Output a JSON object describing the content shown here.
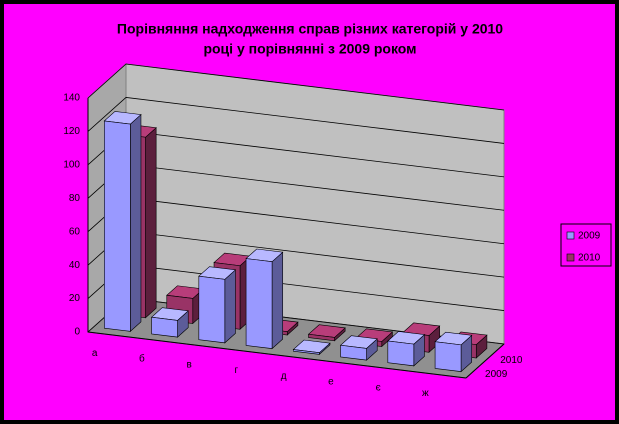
{
  "chart_data": {
    "type": "bar3d",
    "title": [
      "Порівняння надходження справ різних категорій у 2010",
      "році у порівнянні з 2009 роком"
    ],
    "categories": [
      "а",
      "б",
      "в",
      "г",
      "д",
      "е",
      "є",
      "ж"
    ],
    "series": [
      {
        "name": "2009",
        "color": "#9999ff",
        "values": [
          124,
          10,
          38,
          52,
          1,
          7,
          13,
          16
        ]
      },
      {
        "name": "2010",
        "color": "#993366",
        "values": [
          108,
          15,
          38,
          2,
          2,
          3,
          10,
          8
        ]
      }
    ],
    "ylim": [
      0,
      140
    ],
    "yticks": [
      0,
      20,
      40,
      60,
      80,
      100,
      120,
      140
    ],
    "grid": true
  }
}
